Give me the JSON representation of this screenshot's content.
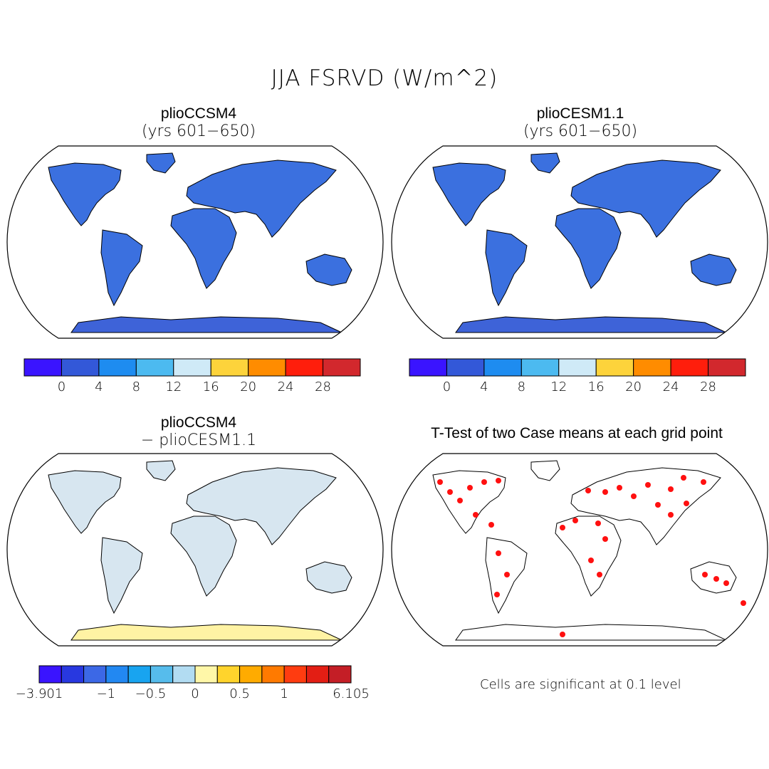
{
  "figure": {
    "title": "JJA FSRVD (W/m^2)",
    "panels": [
      {
        "title": "plioCCSM4",
        "subtitle": "(yrs 601−650)"
      },
      {
        "title": "plioCESM1.1",
        "subtitle": "(yrs 601−650)"
      },
      {
        "title": "plioCCSM4",
        "subtitle": "− plioCESM1.1"
      },
      {
        "title": "T-Test of two Case means at each grid point",
        "subtitle": ""
      }
    ],
    "colorbar_main": {
      "colors": [
        "#3a14ff",
        "#3358d8",
        "#1e8cf0",
        "#4cbaf0",
        "#cfeaf7",
        "#fdd33b",
        "#ff8c00",
        "#ff1e0c",
        "#d2282d"
      ],
      "labels": [
        "0",
        "4",
        "8",
        "12",
        "16",
        "20",
        "24",
        "28"
      ]
    },
    "colorbar_diff": {
      "colors": [
        "#3a14ff",
        "#2838e0",
        "#3c68e6",
        "#2288f2",
        "#18a4f0",
        "#56bcec",
        "#b2dcf2",
        "#fff7a8",
        "#ffd42c",
        "#ffab00",
        "#ff7a00",
        "#ff3c10",
        "#e31e14",
        "#c41e26"
      ],
      "labels": [
        "−3.901",
        "−1",
        "−0.5",
        "0",
        "0.5",
        "1",
        "6.105"
      ]
    },
    "note": "Cells are significant at 0.1 level",
    "maps": [
      {
        "name": "map-pliocesm4",
        "ocean": "#ffffff",
        "land": "#3b70df",
        "antarctica": "#3e63d8",
        "hot": "#e0241c",
        "warm": "#ff9a10"
      },
      {
        "name": "map-pliocesm11",
        "ocean": "#ffffff",
        "land": "#3b70df",
        "antarctica": "#3e63d8",
        "hot": "#e0241c",
        "warm": "#ff9a10"
      },
      {
        "name": "map-difference",
        "ocean": "#ffffff",
        "land": "#d7e6f0",
        "antarctica": "#fff3a4",
        "hot": "#c41e26",
        "warm": "#ffd42c"
      },
      {
        "name": "map-ttest",
        "ocean": "#ffffff",
        "land": "#ffffff",
        "antarctica": "#ffffff",
        "hot": "#ff1010",
        "warm": "#ff1010"
      }
    ]
  }
}
